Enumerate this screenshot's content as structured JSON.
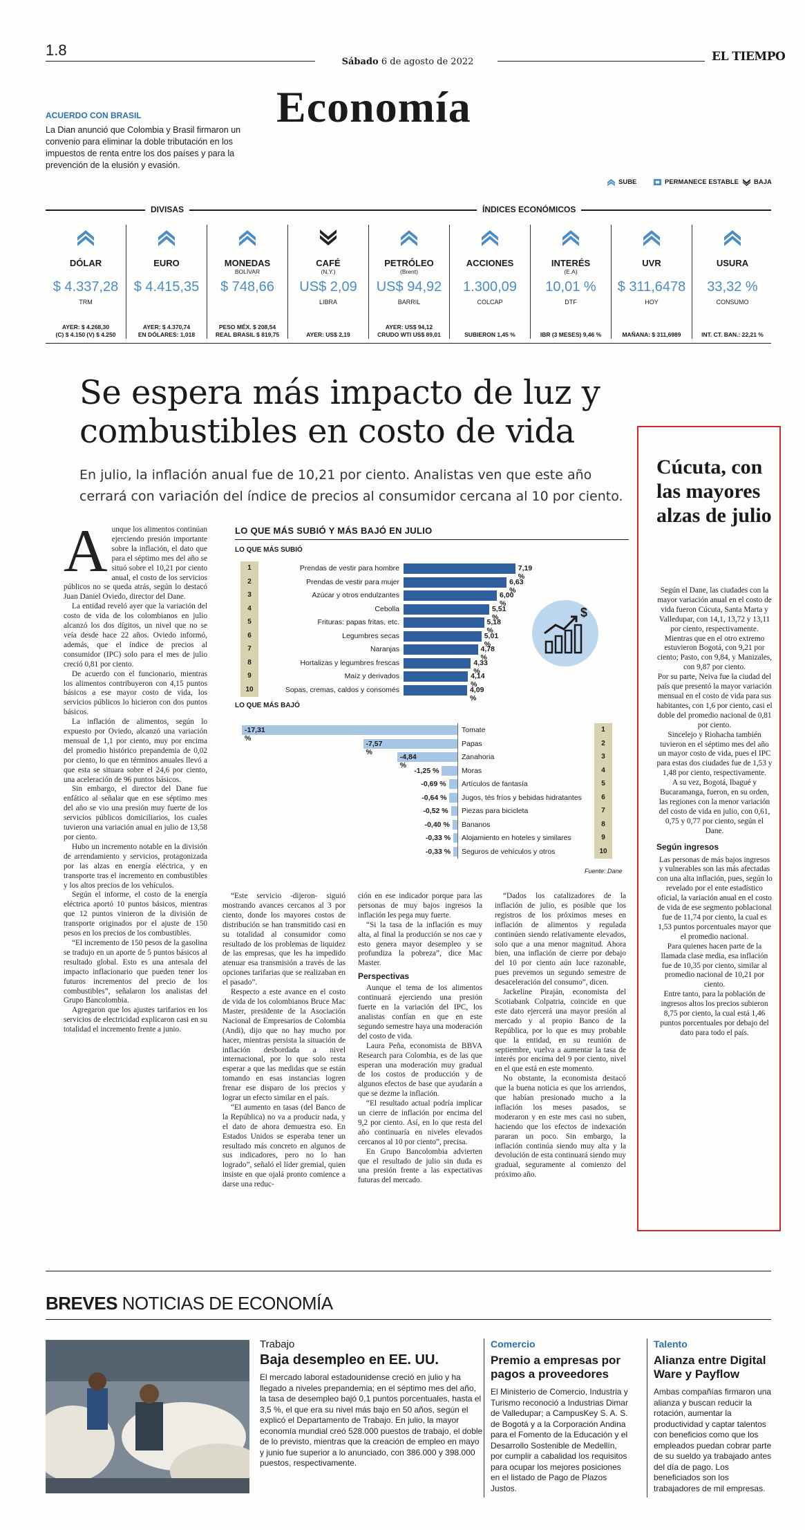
{
  "masthead": {
    "page": "1.8",
    "date_day": "Sábado",
    "date_rest": "6 de agosto de 2022",
    "brand": "EL TIEMPO",
    "section": "Economía"
  },
  "teaser": {
    "kicker": "ACUERDO CON BRASIL",
    "text": "La Dian anunció que Colombia y Brasil firmaron un convenio para eliminar la doble tributación en los impuestos de renta entre los dos países y para la prevención de la elusión y evasión."
  },
  "legend": {
    "up": "SUBE",
    "stable": "PERMANECE ESTABLE",
    "down": "BAJA"
  },
  "headers": {
    "divisas": "DIVISAS",
    "indices": "ÍNDICES ECONÓMICOS"
  },
  "colors": {
    "accent": "#4a8cc8",
    "ink": "#1a1a1a",
    "highlight": "#d9232c",
    "bar_up": "#2f5f9e",
    "bar_down": "#a7c6e5",
    "rank_bg": "#d9d2b0"
  },
  "indicators": [
    {
      "name": "DÓLAR",
      "sub": "",
      "trend": "up",
      "value": "$ 4.337,28",
      "unit": "TRM",
      "foot1": "AYER: $ 4.268,30",
      "foot2": "(C) $ 4.150 (V) $ 4.250"
    },
    {
      "name": "EURO",
      "sub": "",
      "trend": "up",
      "value": "$ 4.415,35",
      "unit": "",
      "foot1": "AYER: $ 4.370,74",
      "foot2": "EN DÓLARES: 1,018"
    },
    {
      "name": "MONEDAS",
      "sub": "BOLÍVAR",
      "trend": "up",
      "value": "$ 748,66",
      "unit": "",
      "foot1": "PESO MÉX. $ 208,54",
      "foot2": "REAL BRASIL $ 819,75"
    },
    {
      "name": "CAFÉ",
      "sub": "(N.Y.)",
      "trend": "down",
      "value": "US$ 2,09",
      "unit": "LIBRA",
      "foot1": "",
      "foot2": "AYER: US$ 2,19"
    },
    {
      "name": "PETRÓLEO",
      "sub": "(Brent)",
      "trend": "up",
      "value": "US$ 94,92",
      "unit": "BARRIL",
      "foot1": "AYER: US$ 94,12",
      "foot2": "CRUDO WTI US$ 89,01"
    },
    {
      "name": "ACCIONES",
      "sub": "",
      "trend": "up",
      "value": "1.300,09",
      "unit": "COLCAP",
      "foot1": "",
      "foot2": "SUBIERON 1,45 %"
    },
    {
      "name": "INTERÉS",
      "sub": "(E.A)",
      "trend": "up",
      "value": "10,01 %",
      "unit": "DTF",
      "foot1": "",
      "foot2": "IBR (3 MESES) 9,46 %"
    },
    {
      "name": "UVR",
      "sub": "",
      "trend": "up",
      "value": "$ 311,6478",
      "unit": "HOY",
      "foot1": "",
      "foot2": "MAÑANA: $ 311,6989"
    },
    {
      "name": "USURA",
      "sub": "",
      "trend": "up",
      "value": "33,32 %",
      "unit": "CONSUMO",
      "foot1": "",
      "foot2": "INT. CT. BAN.: 22,21 %"
    }
  ],
  "article": {
    "headline": "Se espera más impacto de luz y combustibles en costo de vida",
    "deck": "En julio, la inflación anual fue de 10,21 por ciento. Analistas ven que este año cerrará con variación del índice de precios al consumidor cercana al 10 por ciento.",
    "col1": [
      "unque los alimentos continúan ejerciendo presión importante sobre la inflación, el dato que para el séptimo mes del año se situó sobre el 10,21 por ciento anual, el costo de los servicios públicos no se queda atrás, según lo destacó Juan Daniel Oviedo, director del Dane.",
      "La entidad reveló ayer que la variación del costo de vida de los colombianos en julio alcanzó los dos dígitos, un nivel que no se veía desde hace 22 años. Oviedo informó, además, que el índice de precios al consumidor (IPC) solo para el mes de julio creció 0,81 por ciento.",
      "De acuerdo con el funcionario, mientras los alimentos contribuyeron con 4,15 puntos básicos a ese mayor costo de vida, los servicios públicos lo hicieron con dos puntos básicos.",
      "La inflación de alimentos, según lo expuesto por Oviedo, alcanzó una variación mensual de 1,1 por ciento, muy por encima del promedio histórico prepandemia de 0,02 por ciento, lo que en términos anuales llevó a que esta se situara sobre el 24,6 por ciento, una aceleración de 96 puntos básicos.",
      "Sin embargo, el director del Dane fue enfático al señalar que en ese séptimo mes del año se vio una presión muy fuerte de los servicios públicos domiciliarios, los cuales tuvieron una variación anual en julio de 13,58 por ciento.",
      "Hubo un incremento notable en la división de arrendamiento y servicios, protagonizada por las alzas en energía eléctrica, y en transporte tras el incremento en combustibles y los altos precios de los vehículos.",
      "Según el informe, el costo de la energía eléctrica aportó 10 puntos básicos, mientras que 12 puntos vinieron de la división de transporte originados por el ajuste de 150 pesos en los precios de los combustibles.",
      "“El incremento de 150 pesos de la gasolina se tradujo en un aporte de 5 puntos básicos al resultado global. Esto es una antesala del impacto inflacionario que pueden tener los futuros incrementos del precio de los combustibles”, señalaron los analistas del Grupo Bancolombia.",
      "Agregaron que los ajustes tarifarios en los servicios de electricidad explicaron casi en su totalidad el incremento frente a junio."
    ],
    "col2": [
      "“Este servicio -dijeron- siguió mostrando avances cercanos al 3 por ciento, donde los mayores costos de distribución se han transmitido casi en su totalidad al consumidor como resultado de los problemas de liquidez de las empresas, que les ha impedido atenuar esa transmisión a través de las opciones tarifarias que se realizaban en el pasado”.",
      "Respecto a este avance en el costo de vida de los colombianos Bruce Mac Master, presidente de la Asociación Nacional de Empresarios de Colombia (Andi), dijo que no hay mucho por hacer, mientras persista la situación de inflación desbordada a nivel internacional, por lo que solo resta esperar a que las medidas que se están tomando en esas instancias logren frenar ese disparo de los precios y lograr un efecto similar en el país.",
      "“El aumento en tasas (del Banco de la República) no va a producir nada, y el dato de ahora demuestra eso. En Estados Unidos se esperaba tener un resultado más concreto en algunos de sus indicadores, pero no lo han logrado”, señaló el líder gremial, quien insiste en que ojalá pronto comience a darse una reduc-"
    ],
    "col3": [
      "ción en ese indicador porque para las personas de muy bajos ingresos la inflación les pega muy fuerte.",
      "“Si la tasa de la inflación es muy alta, al final la producción se nos cae y esto genera mayor desempleo y se profundiza la pobreza”, dice Mac Master.",
      "Aunque el tema de los alimentos continuará ejerciendo una presión fuerte en la variación del IPC, los analistas confían en que en este segundo semestre haya una moderación del costo de vida.",
      "Laura Peña, economista de BBVA Research para Colombia, es de las que esperan una moderación muy gradual de los costos de producción y de algunos efectos de base que ayudarán a que se dezme la inflación.",
      "“El resultado actual podría implicar un cierre de inflación por encima del 9,2 por ciento. Así, en lo que resta del año continuaría en niveles elevados cercanos al 10 por ciento”, precisa.",
      "En Grupo Bancolombia advierten que el resultado de julio sin duda es una presión frente a las expectativas futuras del mercado."
    ],
    "col3_sub": "Perspectivas",
    "col4": [
      "“Dados los catalizadores de la inflación de julio, es posible que los registros de los próximos meses en inflación de alimentos y regulada continúen siendo relativamente elevados, solo que a una menor magnitud. Ahora bien, una inflación de cierre por debajo del 10 por ciento aún luce razonable, pues prevemos un segundo semestre de desaceleración del consumo”, dicen.",
      "Jackeline Piraján, economista del Scotiabank Colpatria, coincide en que este dato ejercerá una mayor presión al mercado y al propio Banco de la República, por lo que es muy probable que la entidad, en su reunión de septiembre, vuelva a aumentar la tasa de interés por encima del 9 por ciento, nivel en el que está en este momento.",
      "No obstante, la economista destacó que la buena noticia es que los arriendos, que habían presionado mucho a la inflación los meses pasados, se moderaron y en este mes casi no suben, haciendo que los efectos de indexación pararan un poco. Sin embargo, la inflación continúa siendo muy alta y la devolución de esta continuará siendo muy gradual, seguramente al comienzo del próximo año."
    ]
  },
  "chart_labels": {
    "title": "LO QUE MÁS SUBIÓ Y MÁS BAJÓ EN JULIO",
    "up_label": "LO QUE MÁS SUBIÓ",
    "down_label": "LO QUE MÁS BAJÓ",
    "source": "Fuente: Dane"
  },
  "chart_data": [
    {
      "type": "bar",
      "title": "LO QUE MÁS SUBIÓ",
      "categories": [
        "Prendas de vestir para hombre",
        "Prendas de vestir para mujer",
        "Azúcar y otros endulzantes",
        "Cebolla",
        "Frituras: papas fritas, etc.",
        "Legumbres secas",
        "Naranjas",
        "Hortalizas y legumbres frescas",
        "Maíz y derivados",
        "Sopas, cremas, caldos y consomés"
      ],
      "ranks": [
        "1",
        "2",
        "3",
        "4",
        "5",
        "6",
        "7",
        "8",
        "9",
        "10"
      ],
      "values": [
        7.19,
        6.63,
        6.0,
        5.51,
        5.18,
        5.01,
        4.78,
        4.33,
        4.14,
        4.09
      ],
      "labels": [
        "7,19 %",
        "6,63 %",
        "6,00 %",
        "5,51 %",
        "5,18 %",
        "5,01 %",
        "4,78 %",
        "4,33 %",
        "4,14 %",
        "4,09 %"
      ],
      "unit": "%"
    },
    {
      "type": "bar",
      "title": "LO QUE MÁS BAJÓ",
      "categories": [
        "Tomate",
        "Papas",
        "Zanahoria",
        "Moras",
        "Artículos de fantasía",
        "Jugos, tés fríos y bebidas hidratantes",
        "Piezas para bicicleta",
        "Bananos",
        "Alojamiento en hoteles y similares",
        "Seguros de vehículos y otros"
      ],
      "ranks": [
        "1",
        "2",
        "3",
        "4",
        "5",
        "6",
        "7",
        "8",
        "9",
        "10"
      ],
      "values": [
        -17.31,
        -7.57,
        -4.84,
        -1.25,
        -0.69,
        -0.64,
        -0.52,
        -0.4,
        -0.33,
        -0.33
      ],
      "labels": [
        "-17,31 %",
        "-7,57 %",
        "-4,84 %",
        "-1,25 %",
        "-0,69 %",
        "-0,64 %",
        "-0,52 %",
        "-0,40 %",
        "-0,33 %",
        "-0,33 %"
      ],
      "unit": "%"
    }
  ],
  "sidebar": {
    "title": "Cúcuta, con las mayores alzas de julio",
    "paras": [
      "Según el Dane, las ciudades con la mayor variación anual en el costo de vida fueron Cúcuta, Santa Marta y Valledupar, con 14,1, 13,72 y 13,11 por ciento, respectivamente.",
      "Mientras que en el otro extremo estuvieron Bogotá, con 9,21 por ciento; Pasto, con 9,84, y Manizales, con 9,87 por ciento.",
      "Por su parte, Neiva fue la ciudad del país que presentó la mayor variación mensual en el costo de vida para sus habitantes, con 1,6 por ciento, casi el doble del promedio nacional de 0,81 por ciento.",
      "Sincelejo y Riohacha también tuvieron en el séptimo mes del año un mayor costo de vida, pues el IPC para estas dos ciudades fue de 1,53 y 1,48 por ciento, respectivamente.",
      "A su vez, Bogotá, Ibagué y Bucaramanga, fueron, en su orden, las regiones con la menor variación del costo de vida en julio, con 0,61, 0,75 y 0,77 por ciento, según el Dane."
    ],
    "sub": "Según ingresos",
    "paras2": [
      "Las personas de más bajos ingresos y vulnerables son las más afectadas con una alta inflación, pues, según lo revelado por el ente estadístico oficial, la variación anual en el costo de vida de ese segmento poblacional fue de 11,74 por ciento, la cual es 1,53 puntos porcentuales mayor que el promedio nacional.",
      "Para quienes hacen parte de la llamada clase media, esa inflación fue de 10,35 por ciento, similar al promedio nacional de 10,21 por ciento.",
      "Entre tanto, para la población de ingresos altos los precios subieron 8,75 por ciento, la cual está 1,46 puntos porcentuales por debajo del dato para todo el país."
    ]
  },
  "breves": {
    "label_bold": "BREVES",
    "label_rest": "NOTICIAS DE ECONOMÍA",
    "items": [
      {
        "kicker": "Trabajo",
        "head": "Baja desempleo en EE. UU.",
        "body": "El mercado laboral estadounidense creció en julio y ha llegado a niveles prepandemia; en el séptimo mes del año, la tasa de desempleo bajó 0,1 puntos porcentuales, hasta el 3,5 %, el que era su nivel más bajo en 50 años, según el explicó el Departamento de Trabajo. En julio, la mayor economía mundial creó 528.000 puestos de trabajo, el doble de lo previsto, mientras que la creación de empleo en mayo y junio fue superior a lo anunciado, con 386.000 y 398.000 puestos, respectivamente."
      },
      {
        "kicker": "Comercio",
        "head": "Premio a empresas por pagos a proveedores",
        "body": "El Ministerio de Comercio, Industria y Turismo reconoció a Industrias Dimar de Valledupar; a CampusKey S. A. S. de Bogotá y a la Corporación Andina para el Fomento de la Educación y el Desarrollo Sostenible de Medellín, por cumplir a cabalidad los requisitos para ocupar los mejores posiciones en el listado de Pago de Plazos Justos."
      },
      {
        "kicker": "Talento",
        "head": "Alianza entre Digital Ware y Payflow",
        "body": "Ambas compañías firmaron una alianza y buscan reducir la rotación, aumentar la productividad y captar talentos con beneficios como que los empleados puedan cobrar parte de su sueldo ya trabajado antes del día de pago. Los beneficiados son los trabajadores de mil empresas."
      }
    ]
  }
}
